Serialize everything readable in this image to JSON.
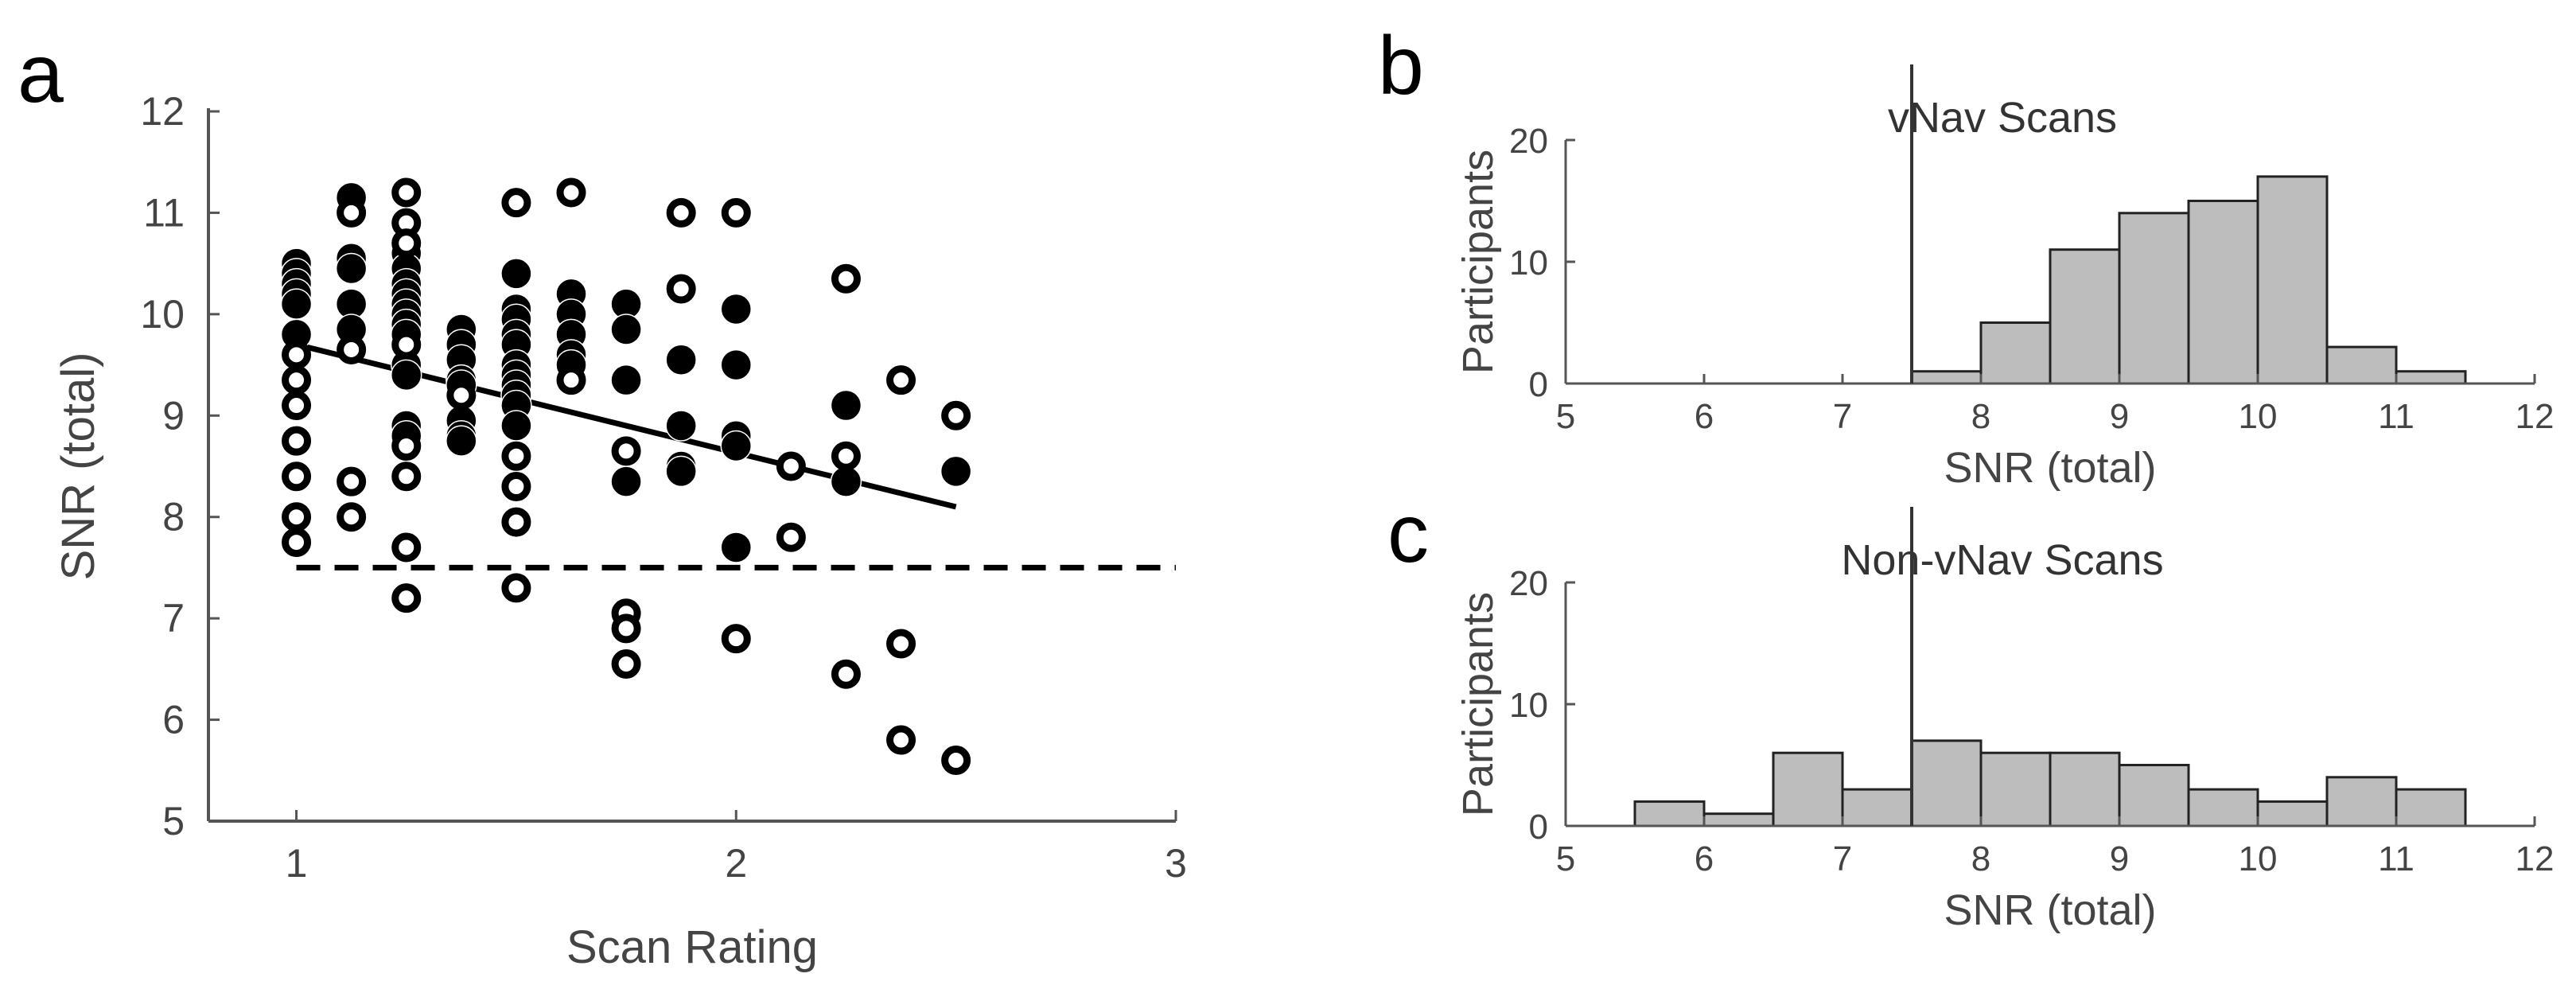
{
  "panels": {
    "a": {
      "letter": "a"
    },
    "b": {
      "letter": "b"
    },
    "c": {
      "letter": "c"
    }
  },
  "chart_data": [
    {
      "id": "scatter",
      "type": "scatter",
      "title": "",
      "xlabel": "Scan Rating",
      "ylabel": "SNR (total)",
      "xlim": [
        0.8,
        3
      ],
      "ylim": [
        5,
        12
      ],
      "xticks": [
        1,
        2,
        3
      ],
      "yticks": [
        5,
        6,
        7,
        8,
        9,
        10,
        11,
        12
      ],
      "threshold": 7.5,
      "fit_line": {
        "x": [
          1,
          2.5
        ],
        "y": [
          9.7,
          8.1
        ]
      },
      "series": [
        {
          "name": "vNav",
          "marker": "filled",
          "points": [
            [
              1,
              10.5
            ],
            [
              1,
              10.4
            ],
            [
              1,
              10.3
            ],
            [
              1,
              10.2
            ],
            [
              1,
              10.1
            ],
            [
              1,
              9.8
            ],
            [
              1.125,
              11.15
            ],
            [
              1.125,
              10.55
            ],
            [
              1.125,
              10.45
            ],
            [
              1.125,
              10.1
            ],
            [
              1.125,
              9.85
            ],
            [
              1.25,
              10.6
            ],
            [
              1.25,
              10.45
            ],
            [
              1.25,
              10.3
            ],
            [
              1.25,
              10.2
            ],
            [
              1.25,
              10.1
            ],
            [
              1.25,
              10.0
            ],
            [
              1.25,
              9.9
            ],
            [
              1.25,
              9.8
            ],
            [
              1.25,
              9.5
            ],
            [
              1.25,
              9.4
            ],
            [
              1.25,
              8.9
            ],
            [
              1.25,
              8.8
            ],
            [
              1.375,
              9.85
            ],
            [
              1.375,
              9.7
            ],
            [
              1.375,
              9.55
            ],
            [
              1.375,
              9.35
            ],
            [
              1.375,
              9.3
            ],
            [
              1.375,
              8.95
            ],
            [
              1.375,
              8.8
            ],
            [
              1.375,
              8.75
            ],
            [
              1.5,
              10.4
            ],
            [
              1.5,
              10.05
            ],
            [
              1.5,
              9.95
            ],
            [
              1.5,
              9.8
            ],
            [
              1.5,
              9.7
            ],
            [
              1.5,
              9.5
            ],
            [
              1.5,
              9.4
            ],
            [
              1.5,
              9.3
            ],
            [
              1.5,
              9.2
            ],
            [
              1.5,
              9.1
            ],
            [
              1.5,
              8.9
            ],
            [
              1.625,
              10.2
            ],
            [
              1.625,
              10.0
            ],
            [
              1.625,
              9.8
            ],
            [
              1.625,
              9.6
            ],
            [
              1.625,
              9.5
            ],
            [
              1.75,
              10.1
            ],
            [
              1.75,
              9.85
            ],
            [
              1.75,
              9.35
            ],
            [
              1.75,
              8.35
            ],
            [
              1.875,
              9.55
            ],
            [
              1.875,
              8.9
            ],
            [
              1.875,
              8.5
            ],
            [
              1.875,
              8.45
            ],
            [
              2,
              10.05
            ],
            [
              2,
              9.5
            ],
            [
              2,
              8.8
            ],
            [
              2,
              8.7
            ],
            [
              2,
              7.7
            ],
            [
              2.25,
              9.1
            ],
            [
              2.25,
              8.35
            ],
            [
              2.5,
              8.45
            ]
          ]
        },
        {
          "name": "Non-vNav",
          "marker": "open",
          "points": [
            [
              1,
              9.6
            ],
            [
              1,
              9.35
            ],
            [
              1,
              9.1
            ],
            [
              1,
              8.75
            ],
            [
              1,
              8.4
            ],
            [
              1,
              8.0
            ],
            [
              1,
              7.75
            ],
            [
              1.125,
              11.0
            ],
            [
              1.125,
              9.65
            ],
            [
              1.125,
              8.35
            ],
            [
              1.125,
              8.0
            ],
            [
              1.25,
              11.2
            ],
            [
              1.25,
              10.9
            ],
            [
              1.25,
              10.7
            ],
            [
              1.25,
              9.7
            ],
            [
              1.25,
              8.7
            ],
            [
              1.25,
              8.4
            ],
            [
              1.25,
              7.7
            ],
            [
              1.25,
              7.2
            ],
            [
              1.375,
              9.2
            ],
            [
              1.5,
              11.1
            ],
            [
              1.5,
              8.6
            ],
            [
              1.5,
              8.3
            ],
            [
              1.5,
              7.95
            ],
            [
              1.5,
              7.3
            ],
            [
              1.625,
              11.2
            ],
            [
              1.625,
              9.35
            ],
            [
              1.75,
              8.65
            ],
            [
              1.75,
              7.05
            ],
            [
              1.75,
              6.9
            ],
            [
              1.75,
              6.55
            ],
            [
              1.875,
              11.0
            ],
            [
              1.875,
              10.25
            ],
            [
              2,
              11.0
            ],
            [
              2,
              6.8
            ],
            [
              2.125,
              8.5
            ],
            [
              2.125,
              7.8
            ],
            [
              2.25,
              10.35
            ],
            [
              2.25,
              8.6
            ],
            [
              2.25,
              6.45
            ],
            [
              2.375,
              9.35
            ],
            [
              2.375,
              6.75
            ],
            [
              2.375,
              5.8
            ],
            [
              2.5,
              9.0
            ],
            [
              2.5,
              5.6
            ]
          ]
        }
      ]
    },
    {
      "id": "hist_vnav",
      "type": "bar",
      "title": "vNav Scans",
      "xlabel": "SNR (total)",
      "ylabel": "Participants",
      "xlim": [
        5,
        12
      ],
      "ylim": [
        0,
        20
      ],
      "xticks": [
        5,
        6,
        7,
        8,
        9,
        10,
        11,
        12
      ],
      "yticks": [
        0,
        10,
        20
      ],
      "threshold": 7.5,
      "bin_width": 0.5,
      "bin_starts": [
        5,
        5.5,
        6,
        6.5,
        7,
        7.5,
        8,
        8.5,
        9,
        9.5,
        10,
        10.5,
        11,
        11.5
      ],
      "values": [
        0,
        0,
        0,
        0,
        0,
        1,
        5,
        11,
        14,
        15,
        17,
        3,
        1,
        0
      ]
    },
    {
      "id": "hist_nonvnav",
      "type": "bar",
      "title": "Non-vNav Scans",
      "xlabel": "SNR (total)",
      "ylabel": "Participants",
      "xlim": [
        5,
        12
      ],
      "ylim": [
        0,
        20
      ],
      "xticks": [
        5,
        6,
        7,
        8,
        9,
        10,
        11,
        12
      ],
      "yticks": [
        0,
        10,
        20
      ],
      "threshold": 7.5,
      "bin_width": 0.5,
      "bin_starts": [
        5.5,
        6,
        6.5,
        7,
        7.5,
        8,
        8.5,
        9,
        9.5,
        10,
        10.5,
        11
      ],
      "values": [
        2,
        1,
        6,
        3,
        7,
        6,
        6,
        5,
        3,
        2,
        4,
        3
      ]
    }
  ]
}
